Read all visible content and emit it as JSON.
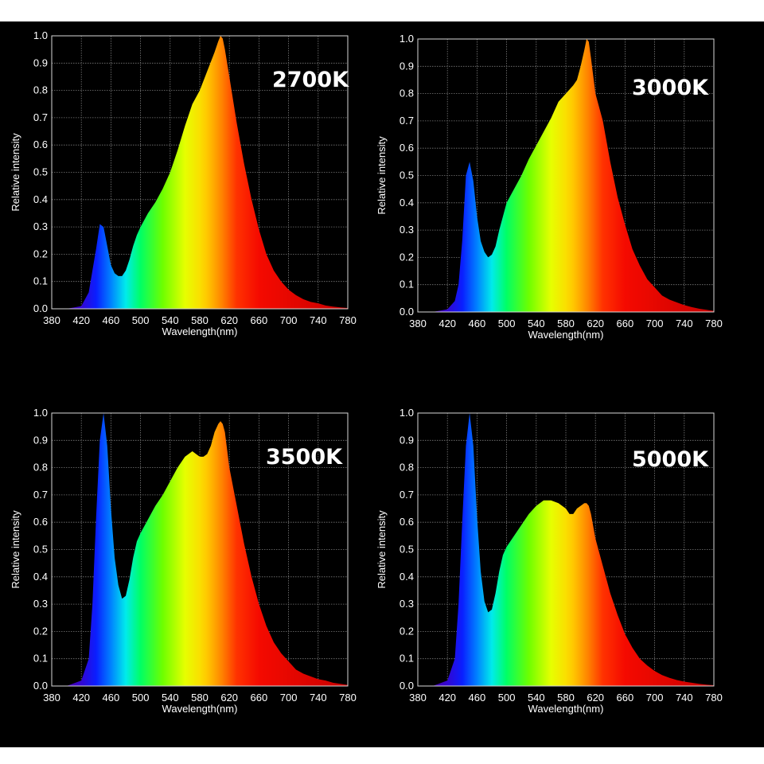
{
  "colors": {
    "background": "#000000",
    "gridline": "#7a7a7a",
    "frame": "#d8d8d8",
    "text": "#ffffff"
  },
  "chart_data": [
    {
      "type": "area",
      "title": "",
      "annotation": "2700K",
      "xlabel": "Wavelength(nm)",
      "ylabel": "Relative intensity",
      "xlim": [
        380,
        780
      ],
      "ylim": [
        0,
        1.0
      ],
      "grid": true,
      "x_ticks": [
        "380",
        "420",
        "460",
        "500",
        "540",
        "580",
        "620",
        "660",
        "700",
        "740",
        "780"
      ],
      "y_ticks": [
        "0.0",
        "0.1",
        "0.2",
        "0.3",
        "0.4",
        "0.5",
        "0.6",
        "0.7",
        "0.8",
        "0.9",
        "1.0"
      ],
      "x": [
        380,
        400,
        420,
        430,
        440,
        445,
        450,
        455,
        460,
        465,
        470,
        475,
        480,
        485,
        490,
        495,
        500,
        510,
        520,
        530,
        540,
        550,
        560,
        570,
        580,
        590,
        600,
        605,
        608,
        611,
        614,
        620,
        630,
        640,
        650,
        660,
        670,
        680,
        690,
        700,
        710,
        720,
        730,
        740,
        750,
        760,
        770,
        780
      ],
      "y": [
        0,
        0,
        0.01,
        0.06,
        0.22,
        0.31,
        0.3,
        0.23,
        0.16,
        0.13,
        0.12,
        0.12,
        0.14,
        0.18,
        0.23,
        0.27,
        0.3,
        0.35,
        0.39,
        0.44,
        0.5,
        0.58,
        0.67,
        0.75,
        0.8,
        0.87,
        0.94,
        0.98,
        1.0,
        0.99,
        0.95,
        0.85,
        0.68,
        0.53,
        0.4,
        0.29,
        0.2,
        0.14,
        0.1,
        0.07,
        0.05,
        0.035,
        0.025,
        0.02,
        0.012,
        0.008,
        0.005,
        0.003
      ]
    },
    {
      "type": "area",
      "title": "",
      "annotation": "3000K",
      "xlabel": "Wavelength(nm)",
      "ylabel": "Relative intensity",
      "xlim": [
        380,
        780
      ],
      "ylim": [
        0,
        1.0
      ],
      "grid": true,
      "x_ticks": [
        "380",
        "420",
        "460",
        "500",
        "540",
        "580",
        "620",
        "660",
        "700",
        "740",
        "780"
      ],
      "y_ticks": [
        "0.0",
        "0.1",
        "0.2",
        "0.3",
        "0.4",
        "0.5",
        "0.6",
        "0.7",
        "0.8",
        "0.9",
        "1.0"
      ],
      "x": [
        380,
        400,
        420,
        430,
        435,
        440,
        445,
        450,
        455,
        460,
        465,
        470,
        475,
        480,
        485,
        490,
        495,
        500,
        510,
        520,
        530,
        540,
        550,
        560,
        570,
        580,
        590,
        595,
        600,
        605,
        608,
        611,
        614,
        620,
        630,
        640,
        650,
        660,
        670,
        680,
        690,
        700,
        710,
        720,
        730,
        740,
        750,
        760,
        770,
        780
      ],
      "y": [
        0,
        0,
        0.01,
        0.04,
        0.1,
        0.26,
        0.5,
        0.55,
        0.48,
        0.35,
        0.26,
        0.22,
        0.2,
        0.21,
        0.24,
        0.3,
        0.35,
        0.4,
        0.45,
        0.5,
        0.56,
        0.61,
        0.66,
        0.71,
        0.77,
        0.8,
        0.83,
        0.85,
        0.9,
        0.96,
        1.0,
        0.99,
        0.93,
        0.8,
        0.7,
        0.55,
        0.42,
        0.32,
        0.23,
        0.17,
        0.12,
        0.09,
        0.06,
        0.045,
        0.035,
        0.025,
        0.018,
        0.012,
        0.008,
        0.004
      ]
    },
    {
      "type": "area",
      "title": "",
      "annotation": "3500K",
      "xlabel": "Wavelength(nm)",
      "ylabel": "Relative intensity",
      "xlim": [
        380,
        780
      ],
      "ylim": [
        0,
        1.0
      ],
      "grid": true,
      "x_ticks": [
        "380",
        "420",
        "460",
        "500",
        "540",
        "580",
        "620",
        "660",
        "700",
        "740",
        "780"
      ],
      "y_ticks": [
        "0.0",
        "0.1",
        "0.2",
        "0.3",
        "0.4",
        "0.5",
        "0.6",
        "0.7",
        "0.8",
        "0.9",
        "1.0"
      ],
      "x": [
        380,
        400,
        420,
        430,
        435,
        440,
        445,
        450,
        455,
        460,
        465,
        470,
        475,
        480,
        485,
        490,
        495,
        500,
        510,
        520,
        530,
        540,
        550,
        560,
        570,
        575,
        580,
        585,
        590,
        595,
        600,
        605,
        608,
        611,
        614,
        620,
        630,
        640,
        650,
        660,
        670,
        680,
        690,
        700,
        710,
        720,
        730,
        740,
        750,
        760,
        770,
        780
      ],
      "y": [
        0,
        0,
        0.02,
        0.1,
        0.3,
        0.62,
        0.9,
        1.0,
        0.88,
        0.65,
        0.47,
        0.37,
        0.32,
        0.33,
        0.39,
        0.47,
        0.53,
        0.56,
        0.61,
        0.66,
        0.7,
        0.75,
        0.8,
        0.84,
        0.86,
        0.85,
        0.84,
        0.84,
        0.85,
        0.88,
        0.93,
        0.96,
        0.97,
        0.96,
        0.93,
        0.8,
        0.66,
        0.52,
        0.4,
        0.3,
        0.22,
        0.16,
        0.12,
        0.09,
        0.06,
        0.045,
        0.035,
        0.025,
        0.02,
        0.012,
        0.008,
        0.004
      ]
    },
    {
      "type": "area",
      "title": "",
      "annotation": "5000K",
      "xlabel": "Wavelength(nm)",
      "ylabel": "Relative intensity",
      "xlim": [
        380,
        780
      ],
      "ylim": [
        0,
        1.0
      ],
      "grid": true,
      "x_ticks": [
        "380",
        "420",
        "460",
        "500",
        "540",
        "580",
        "620",
        "660",
        "700",
        "740",
        "780"
      ],
      "y_ticks": [
        "0.0",
        "0.1",
        "0.2",
        "0.3",
        "0.4",
        "0.5",
        "0.6",
        "0.7",
        "0.8",
        "0.9",
        "1.0"
      ],
      "x": [
        380,
        400,
        420,
        430,
        435,
        440,
        445,
        450,
        455,
        460,
        465,
        470,
        475,
        480,
        485,
        490,
        495,
        500,
        510,
        520,
        530,
        540,
        550,
        560,
        570,
        575,
        580,
        585,
        590,
        595,
        600,
        605,
        608,
        611,
        614,
        620,
        630,
        640,
        650,
        660,
        670,
        680,
        690,
        700,
        710,
        720,
        730,
        740,
        750,
        760,
        770,
        780
      ],
      "y": [
        0,
        0,
        0.02,
        0.1,
        0.3,
        0.6,
        0.88,
        1.0,
        0.88,
        0.62,
        0.42,
        0.31,
        0.27,
        0.28,
        0.34,
        0.42,
        0.48,
        0.51,
        0.55,
        0.59,
        0.63,
        0.66,
        0.68,
        0.68,
        0.67,
        0.66,
        0.65,
        0.63,
        0.63,
        0.65,
        0.66,
        0.67,
        0.67,
        0.66,
        0.63,
        0.54,
        0.44,
        0.34,
        0.26,
        0.19,
        0.14,
        0.1,
        0.075,
        0.055,
        0.04,
        0.03,
        0.022,
        0.016,
        0.012,
        0.008,
        0.005,
        0.003
      ]
    }
  ]
}
